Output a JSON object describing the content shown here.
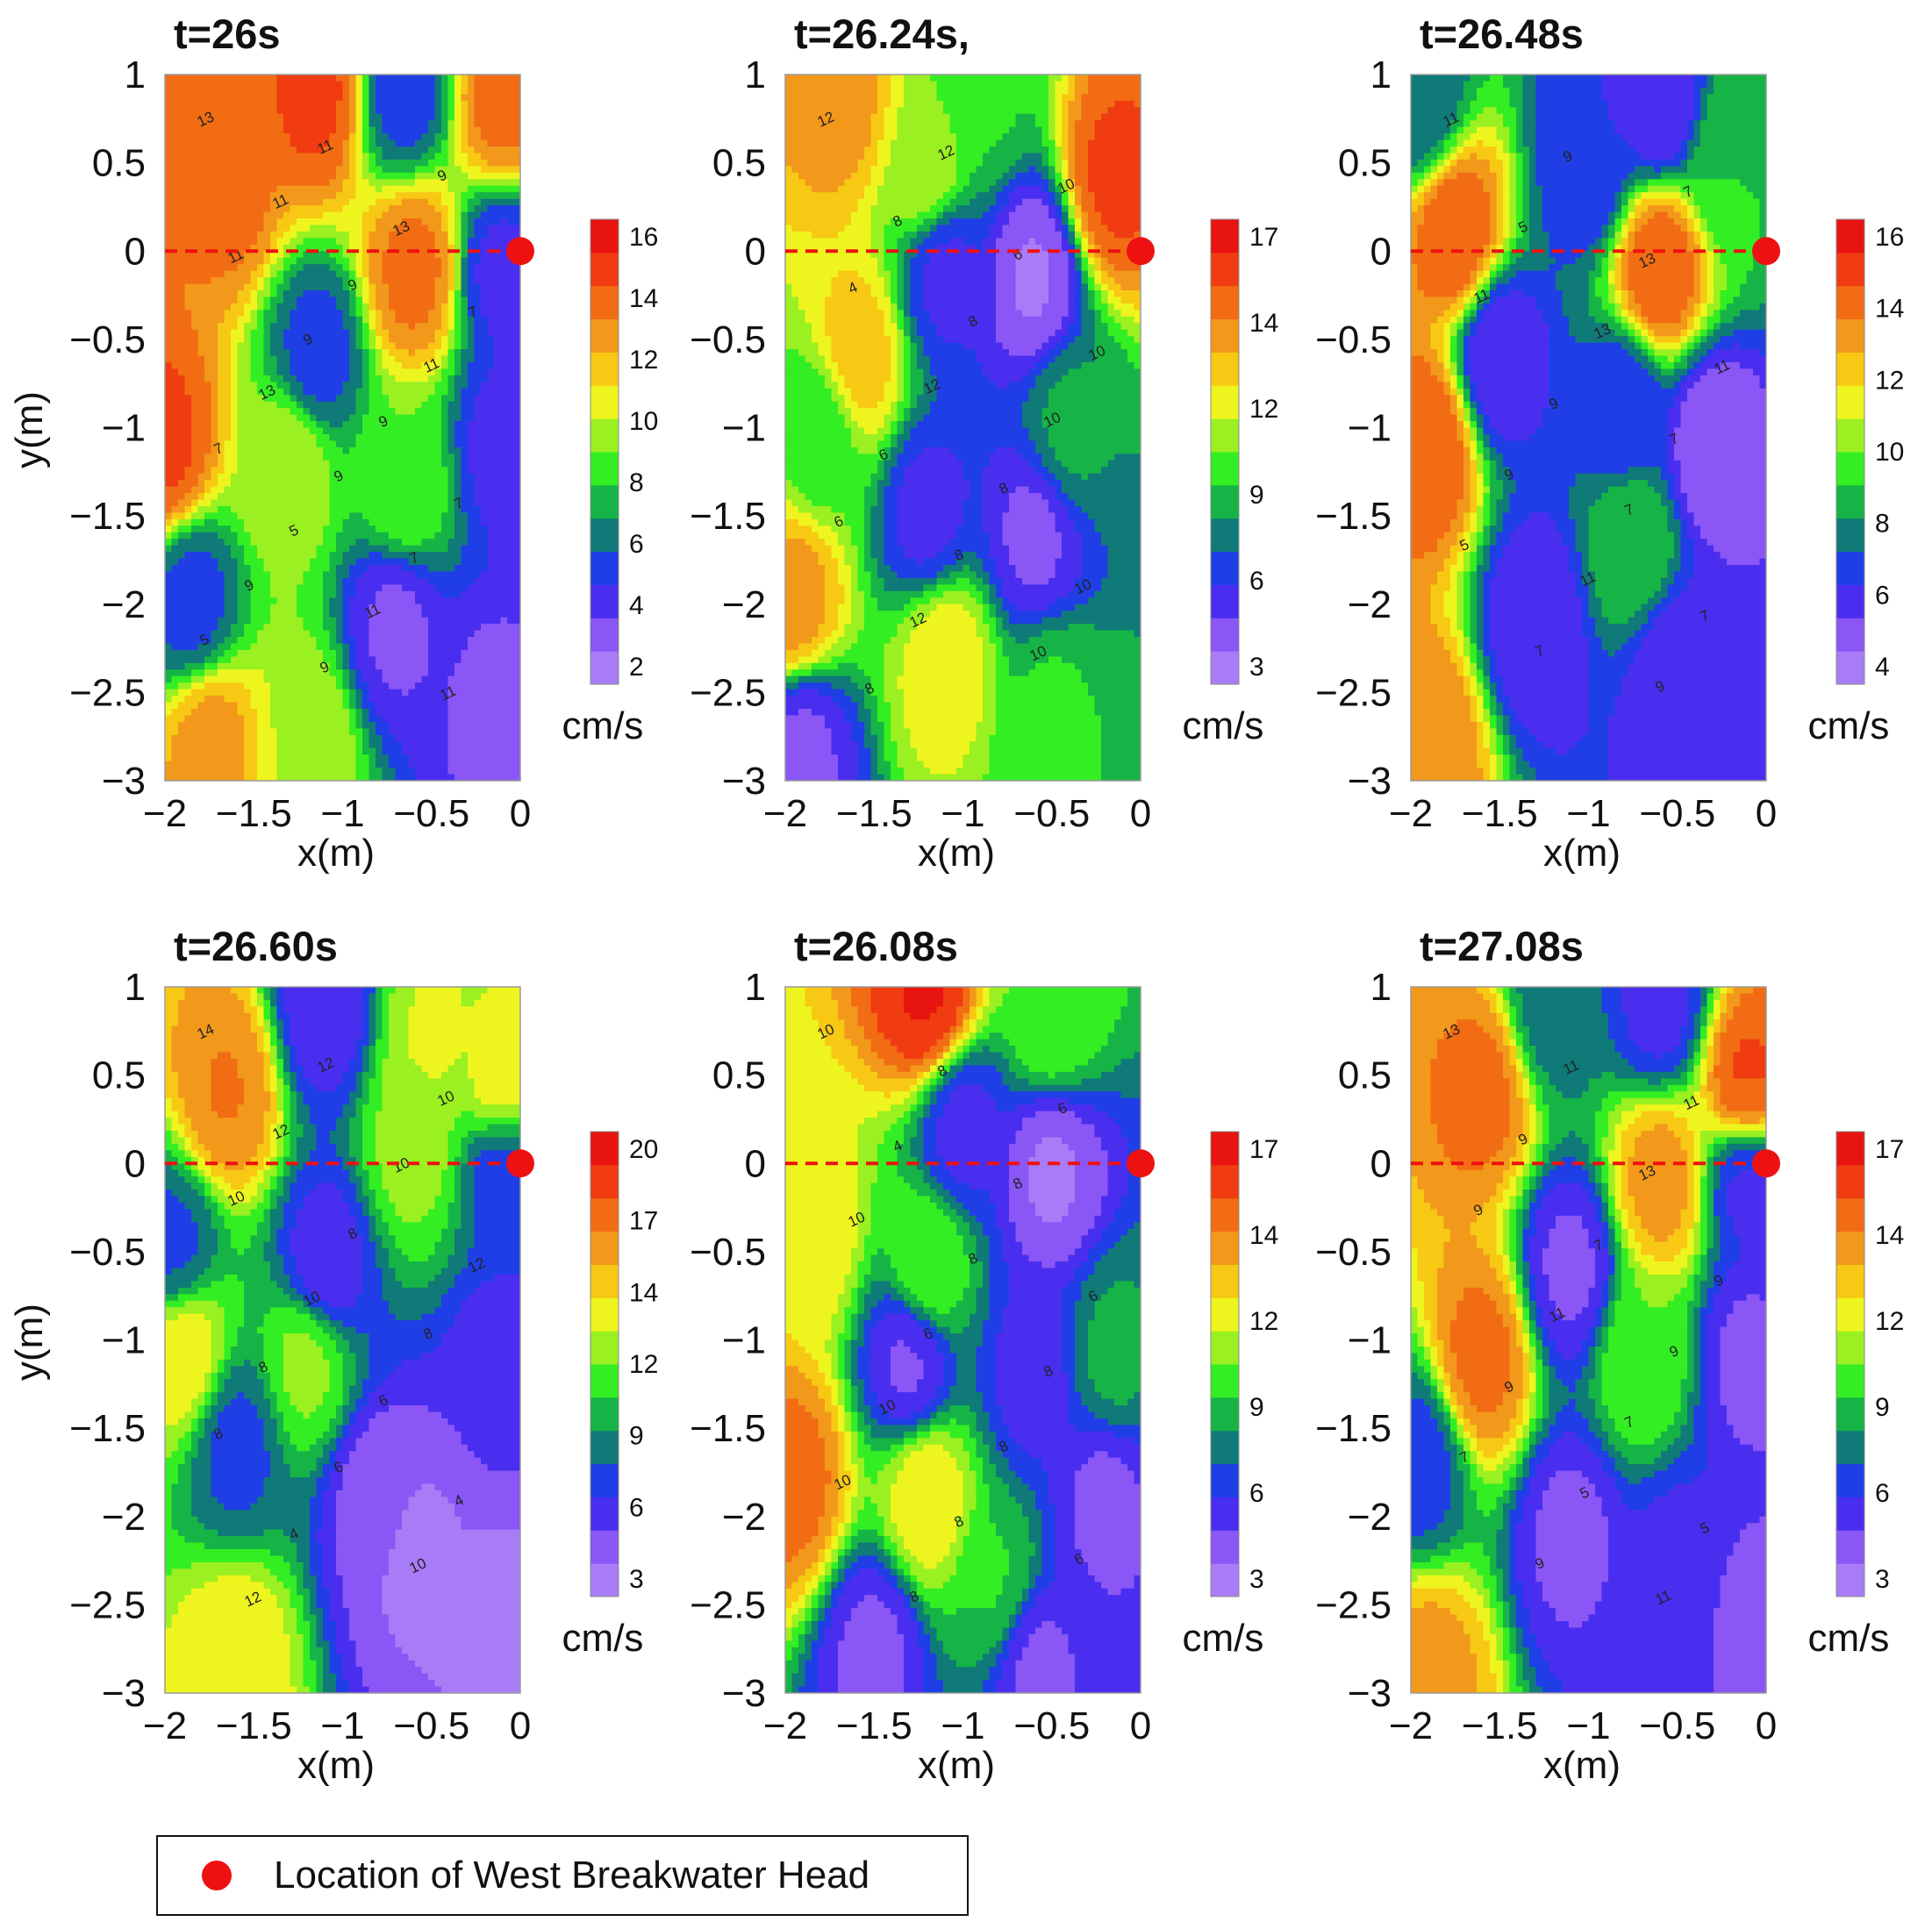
{
  "chart_data": [
    {
      "type": "contour",
      "title": "t=26s",
      "xlabel": "x(m)",
      "ylabel": "y(m)",
      "xlim": [
        -2,
        0
      ],
      "ylim": [
        -3,
        1
      ],
      "xticks": [
        "−2",
        "−1.5",
        "−1",
        "−0.5",
        "0"
      ],
      "yticks": [
        "1",
        "0.5",
        "0",
        "−0.5",
        "−1",
        "−1.5",
        "−2",
        "−2.5",
        "−3"
      ],
      "colorbar": {
        "ticks": [
          "16",
          "14",
          "12",
          "10",
          "8",
          "6",
          "4",
          "2"
        ],
        "unit": "cm/s",
        "min": 1,
        "max": 17
      },
      "contour_labels": [
        "13",
        "11",
        "9",
        "11",
        "13",
        "11",
        "9",
        "7",
        "9",
        "11",
        "13",
        "9",
        "7",
        "9",
        "7",
        "5",
        "7",
        "9",
        "11",
        "5",
        "9",
        "11"
      ],
      "breakwater_head": {
        "x": 0,
        "y": 0
      },
      "field_features": [
        {
          "x": -1.65,
          "y": 0.35,
          "v": 14
        },
        {
          "x": -1.15,
          "y": 0.9,
          "v": 15
        },
        {
          "x": -0.1,
          "y": 0.85,
          "v": 14
        },
        {
          "x": -0.65,
          "y": 0.9,
          "v": 5
        },
        {
          "x": -0.6,
          "y": -0.1,
          "v": 14
        },
        {
          "x": -0.1,
          "y": -0.1,
          "v": 4
        },
        {
          "x": -1.15,
          "y": -0.6,
          "v": 5
        },
        {
          "x": -2.0,
          "y": -1.1,
          "v": 15
        },
        {
          "x": -0.1,
          "y": -1.1,
          "v": 4
        },
        {
          "x": -1.3,
          "y": -1.2,
          "v": 10
        },
        {
          "x": -0.65,
          "y": -1.35,
          "v": 9
        },
        {
          "x": -1.85,
          "y": -2.0,
          "v": 5
        },
        {
          "x": -0.7,
          "y": -2.1,
          "v": 3
        },
        {
          "x": -0.15,
          "y": -2.6,
          "v": 3
        },
        {
          "x": -1.75,
          "y": -2.8,
          "v": 13
        },
        {
          "x": -1.2,
          "y": -2.8,
          "v": 10
        }
      ],
      "field_base": 8.5
    },
    {
      "type": "contour",
      "title": "t=26.24s,",
      "xlabel": "x(m)",
      "ylabel": "",
      "xlim": [
        -2,
        0
      ],
      "ylim": [
        -3,
        1
      ],
      "xticks": [
        "−2",
        "−1.5",
        "−1",
        "−0.5",
        "0"
      ],
      "yticks": [
        "1",
        "0.5",
        "0",
        "−0.5",
        "−1",
        "−1.5",
        "−2",
        "−2.5",
        "−3"
      ],
      "colorbar": {
        "ticks": [
          "17",
          "14",
          "12",
          "9",
          "6",
          "3"
        ],
        "unit": "cm/s",
        "min": 2,
        "max": 18
      },
      "contour_labels": [
        "12",
        "12",
        "10",
        "8",
        "6",
        "4",
        "8",
        "10",
        "12",
        "10",
        "6",
        "8",
        "6",
        "8",
        "10",
        "12",
        "10",
        "8"
      ],
      "breakwater_head": {
        "x": 0,
        "y": 0
      },
      "field_features": [
        {
          "x": -1.7,
          "y": 0.85,
          "v": 14
        },
        {
          "x": -0.9,
          "y": 0.9,
          "v": 9
        },
        {
          "x": -0.15,
          "y": 0.4,
          "v": 16
        },
        {
          "x": -1.2,
          "y": 0.45,
          "v": 11
        },
        {
          "x": -0.6,
          "y": -0.15,
          "v": 3
        },
        {
          "x": -1.1,
          "y": -0.1,
          "v": 5
        },
        {
          "x": -1.6,
          "y": -0.6,
          "v": 13
        },
        {
          "x": -1.8,
          "y": -1.0,
          "v": 9
        },
        {
          "x": -1.2,
          "y": -1.5,
          "v": 5
        },
        {
          "x": -0.6,
          "y": -1.6,
          "v": 4
        },
        {
          "x": -0.4,
          "y": -1.0,
          "v": 8
        },
        {
          "x": -1.95,
          "y": -2.0,
          "v": 14
        },
        {
          "x": -1.1,
          "y": -2.3,
          "v": 12
        },
        {
          "x": -1.9,
          "y": -2.8,
          "v": 4
        },
        {
          "x": -0.5,
          "y": -2.6,
          "v": 9
        }
      ],
      "field_base": 8
    },
    {
      "type": "contour",
      "title": "t=26.48s",
      "xlabel": "x(m)",
      "ylabel": "",
      "xlim": [
        -2,
        0
      ],
      "ylim": [
        -3,
        1
      ],
      "xticks": [
        "−2",
        "−1.5",
        "−1",
        "−0.5",
        "0"
      ],
      "yticks": [
        "1",
        "0.5",
        "0",
        "−0.5",
        "−1",
        "−1.5",
        "−2",
        "−2.5",
        "−3"
      ],
      "colorbar": {
        "ticks": [
          "16",
          "14",
          "12",
          "10",
          "8",
          "6",
          "4"
        ],
        "unit": "cm/s",
        "min": 3,
        "max": 17
      },
      "contour_labels": [
        "11",
        "9",
        "7",
        "5",
        "13",
        "11",
        "13",
        "11",
        "9",
        "7",
        "9",
        "7",
        "5",
        "11",
        "7",
        "7",
        "9"
      ],
      "breakwater_head": {
        "x": 0,
        "y": 0
      },
      "field_features": [
        {
          "x": -1.75,
          "y": 0.1,
          "v": 15
        },
        {
          "x": -0.6,
          "y": -0.1,
          "v": 15
        },
        {
          "x": -0.6,
          "y": 0.85,
          "v": 5
        },
        {
          "x": -1.0,
          "y": 0.5,
          "v": 6
        },
        {
          "x": -1.95,
          "y": 0.85,
          "v": 7
        },
        {
          "x": -0.2,
          "y": 0.5,
          "v": 9
        },
        {
          "x": -1.5,
          "y": -0.6,
          "v": 5
        },
        {
          "x": -1.9,
          "y": -1.1,
          "v": 15
        },
        {
          "x": -0.8,
          "y": -0.9,
          "v": 6
        },
        {
          "x": -0.3,
          "y": -1.1,
          "v": 4
        },
        {
          "x": -0.75,
          "y": -1.65,
          "v": 9
        },
        {
          "x": -1.3,
          "y": -2.1,
          "v": 5
        },
        {
          "x": -0.5,
          "y": -2.4,
          "v": 5
        },
        {
          "x": -1.9,
          "y": -2.8,
          "v": 14
        }
      ],
      "field_base": 7
    },
    {
      "type": "contour",
      "title": "t=26.60s",
      "xlabel": "x(m)",
      "ylabel": "y(m)",
      "xlim": [
        -2,
        0
      ],
      "ylim": [
        -3,
        1
      ],
      "xticks": [
        "−2",
        "−1.5",
        "−1",
        "−0.5",
        "0"
      ],
      "yticks": [
        "1",
        "0.5",
        "0",
        "−0.5",
        "−1",
        "−1.5",
        "−2",
        "−2.5",
        "−3"
      ],
      "colorbar": {
        "ticks": [
          "20",
          "17",
          "14",
          "12",
          "9",
          "6",
          "3"
        ],
        "unit": "cm/s",
        "min": 2,
        "max": 21
      },
      "contour_labels": [
        "14",
        "12",
        "10",
        "12",
        "10",
        "10",
        "8",
        "12",
        "10",
        "8",
        "8",
        "6",
        "8",
        "6",
        "4",
        "4",
        "10",
        "12"
      ],
      "breakwater_head": {
        "x": 0,
        "y": 0
      },
      "field_features": [
        {
          "x": -1.65,
          "y": 0.4,
          "v": 17
        },
        {
          "x": -1.1,
          "y": 0.9,
          "v": 5
        },
        {
          "x": -0.5,
          "y": 0.7,
          "v": 13
        },
        {
          "x": -0.1,
          "y": 0.4,
          "v": 14
        },
        {
          "x": -0.6,
          "y": 0.1,
          "v": 12
        },
        {
          "x": -0.1,
          "y": 0.0,
          "v": 6
        },
        {
          "x": -1.95,
          "y": -0.5,
          "v": 7
        },
        {
          "x": -1.1,
          "y": -0.6,
          "v": 5
        },
        {
          "x": -1.9,
          "y": -1.05,
          "v": 14
        },
        {
          "x": -1.2,
          "y": -1.1,
          "v": 12
        },
        {
          "x": -0.1,
          "y": -1.2,
          "v": 5
        },
        {
          "x": -1.6,
          "y": -1.6,
          "v": 7
        },
        {
          "x": -0.8,
          "y": -1.9,
          "v": 4
        },
        {
          "x": -0.6,
          "y": -2.2,
          "v": 3
        },
        {
          "x": -1.6,
          "y": -2.8,
          "v": 14
        },
        {
          "x": -0.1,
          "y": -2.6,
          "v": 3
        }
      ],
      "field_base": 10
    },
    {
      "type": "contour",
      "title": "t=26.08s",
      "xlabel": "x(m)",
      "ylabel": "",
      "xlim": [
        -2,
        0
      ],
      "ylim": [
        -3,
        1
      ],
      "xticks": [
        "−2",
        "−1.5",
        "−1",
        "−0.5",
        "0"
      ],
      "yticks": [
        "1",
        "0.5",
        "0",
        "−0.5",
        "−1",
        "−1.5",
        "−2",
        "−2.5",
        "−3"
      ],
      "colorbar": {
        "ticks": [
          "17",
          "14",
          "12",
          "9",
          "6",
          "3"
        ],
        "unit": "cm/s",
        "min": 2,
        "max": 18
      },
      "contour_labels": [
        "10",
        "8",
        "6",
        "4",
        "8",
        "10",
        "8",
        "6",
        "6",
        "8",
        "10",
        "8",
        "10",
        "8",
        "6",
        "8"
      ],
      "breakwater_head": {
        "x": 0,
        "y": 0
      },
      "field_features": [
        {
          "x": -1.2,
          "y": 0.95,
          "v": 17
        },
        {
          "x": -0.5,
          "y": 0.85,
          "v": 10
        },
        {
          "x": -0.5,
          "y": -0.05,
          "v": 3
        },
        {
          "x": -1.0,
          "y": 0.2,
          "v": 5
        },
        {
          "x": -1.85,
          "y": -0.4,
          "v": 12
        },
        {
          "x": -1.2,
          "y": -0.6,
          "v": 10
        },
        {
          "x": -1.3,
          "y": -1.1,
          "v": 4
        },
        {
          "x": -0.15,
          "y": -1.1,
          "v": 8
        },
        {
          "x": -0.6,
          "y": -1.2,
          "v": 5
        },
        {
          "x": -1.95,
          "y": -1.8,
          "v": 15
        },
        {
          "x": -1.2,
          "y": -1.9,
          "v": 12
        },
        {
          "x": -0.2,
          "y": -1.9,
          "v": 4
        },
        {
          "x": -1.5,
          "y": -2.75,
          "v": 4
        },
        {
          "x": -0.6,
          "y": -2.8,
          "v": 4
        },
        {
          "x": -0.8,
          "y": -2.4,
          "v": 9
        }
      ],
      "field_base": 7.5
    },
    {
      "type": "contour",
      "title": "t=27.08s",
      "xlabel": "x(m)",
      "ylabel": "",
      "xlim": [
        -2,
        0
      ],
      "ylim": [
        -3,
        1
      ],
      "xticks": [
        "−2",
        "−1.5",
        "−1",
        "−0.5",
        "0"
      ],
      "yticks": [
        "1",
        "0.5",
        "0",
        "−0.5",
        "−1",
        "−1.5",
        "−2",
        "−2.5",
        "−3"
      ],
      "colorbar": {
        "ticks": [
          "17",
          "14",
          "12",
          "9",
          "6",
          "3"
        ],
        "unit": "cm/s",
        "min": 2,
        "max": 18
      },
      "contour_labels": [
        "13",
        "11",
        "11",
        "9",
        "13",
        "9",
        "7",
        "9",
        "11",
        "9",
        "9",
        "7",
        "7",
        "5",
        "5",
        "9",
        "11"
      ],
      "breakwater_head": {
        "x": 0,
        "y": 0
      },
      "field_features": [
        {
          "x": -1.6,
          "y": 0.4,
          "v": 15
        },
        {
          "x": -0.1,
          "y": 0.45,
          "v": 16
        },
        {
          "x": -1.2,
          "y": 0.9,
          "v": 7
        },
        {
          "x": -0.6,
          "y": 0.9,
          "v": 5
        },
        {
          "x": -0.6,
          "y": -0.1,
          "v": 14
        },
        {
          "x": -0.1,
          "y": -0.1,
          "v": 5
        },
        {
          "x": -1.1,
          "y": -0.6,
          "v": 4
        },
        {
          "x": -1.6,
          "y": -1.1,
          "v": 15
        },
        {
          "x": -0.1,
          "y": -1.1,
          "v": 4
        },
        {
          "x": -0.7,
          "y": -1.1,
          "v": 10
        },
        {
          "x": -1.95,
          "y": -1.7,
          "v": 6
        },
        {
          "x": -1.1,
          "y": -2.1,
          "v": 4
        },
        {
          "x": -0.5,
          "y": -2.3,
          "v": 5
        },
        {
          "x": -1.9,
          "y": -2.9,
          "v": 14
        },
        {
          "x": -0.1,
          "y": -2.6,
          "v": 4
        }
      ],
      "field_base": 9
    }
  ],
  "legend": {
    "marker_color": "#ee1111",
    "label": "Location of West Breakwater Head"
  },
  "colors": {
    "colormap": [
      "#a97cf7",
      "#8a56f5",
      "#4a2ef0",
      "#1f3ee6",
      "#0f7a78",
      "#16b446",
      "#33ee22",
      "#9af020",
      "#eef51e",
      "#f7c814",
      "#f2981a",
      "#f26c14",
      "#f03c10",
      "#e81410"
    ],
    "breakwater_line": "#ee1111"
  }
}
